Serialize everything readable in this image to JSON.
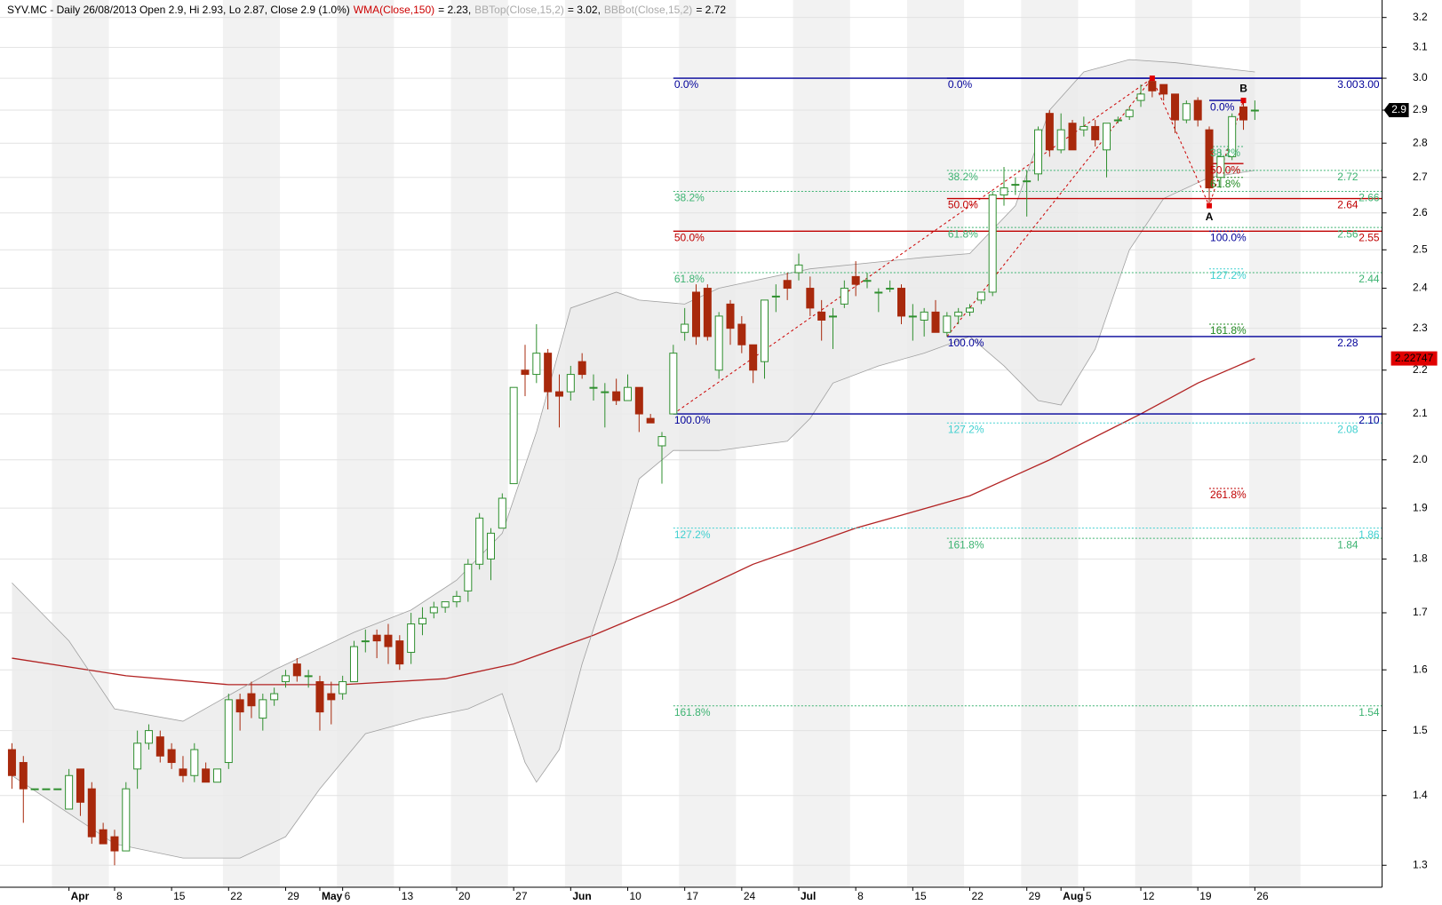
{
  "chart_data": {
    "type": "candlestick",
    "title": "SYV.MC - Daily 26/08/2013 Open 2.9, Hi 2.93, Lo 2.87, Close 2.9 (1.0%)",
    "log_scale": true,
    "grid": true,
    "up_color": "#2f8f2f",
    "down_color": "#a8290c",
    "band_fill": "#ebebeb",
    "ylim": [
      1.27,
      3.26
    ],
    "yticks": [
      1.3,
      1.4,
      1.5,
      1.6,
      1.7,
      1.8,
      1.9,
      {
        "value": 2,
        "label": "2.0"
      },
      2.1,
      2.2,
      2.3,
      2.4,
      2.5,
      2.6,
      2.7,
      2.8,
      2.9,
      {
        "value": 3,
        "label": "3.0"
      },
      3.1,
      3.2
    ],
    "categories": [
      null,
      null,
      null,
      null,
      null,
      "Apr",
      null,
      null,
      null,
      "8",
      null,
      null,
      null,
      null,
      "15",
      null,
      null,
      null,
      null,
      "22",
      null,
      null,
      null,
      null,
      "29",
      null,
      null,
      "May",
      null,
      "6",
      null,
      null,
      null,
      null,
      "13",
      null,
      null,
      null,
      null,
      "20",
      null,
      null,
      null,
      null,
      "27",
      null,
      null,
      null,
      null,
      "Jun",
      null,
      null,
      null,
      null,
      "10",
      null,
      null,
      null,
      null,
      "17",
      null,
      null,
      null,
      null,
      "24",
      null,
      null,
      null,
      null,
      "Jul",
      null,
      null,
      null,
      null,
      "8",
      null,
      null,
      null,
      null,
      "15",
      null,
      null,
      null,
      null,
      "22",
      null,
      null,
      null,
      null,
      "29",
      null,
      null,
      "Aug",
      null,
      "5",
      null,
      null,
      null,
      null,
      "12",
      null,
      null,
      null,
      null,
      "19",
      null,
      null,
      null,
      null,
      "26"
    ],
    "open": [
      1.47,
      1.45,
      1.41,
      1.41,
      1.41,
      1.38,
      1.44,
      1.41,
      1.35,
      1.34,
      1.32,
      1.44,
      1.48,
      1.49,
      1.47,
      1.44,
      1.43,
      1.44,
      1.42,
      1.45,
      1.55,
      1.56,
      1.52,
      1.55,
      1.58,
      1.61,
      1.59,
      1.58,
      1.56,
      1.56,
      1.58,
      1.65,
      1.66,
      1.66,
      1.65,
      1.63,
      1.68,
      1.7,
      1.71,
      1.72,
      1.74,
      1.79,
      1.8,
      1.86,
      1.95,
      2.2,
      2.19,
      2.24,
      2.15,
      2.15,
      2.22,
      2.16,
      2.15,
      2.15,
      2.13,
      2.16,
      2.09,
      2.03,
      2.1,
      2.29,
      2.39,
      2.4,
      2.2,
      2.36,
      2.31,
      2.26,
      2.22,
      2.38,
      2.42,
      2.44,
      2.4,
      2.34,
      2.33,
      2.36,
      2.43,
      2.42,
      2.39,
      2.4,
      2.4,
      2.33,
      2.32,
      2.34,
      2.29,
      2.33,
      2.34,
      2.37,
      2.39,
      2.65,
      2.68,
      2.69,
      2.71,
      2.89,
      2.78,
      2.86,
      2.84,
      2.85,
      2.78,
      2.87,
      2.88,
      2.93,
      2.99,
      2.98,
      2.95,
      2.87,
      2.93,
      2.84,
      2.7,
      2.76,
      2.91,
      2.9
    ],
    "high": [
      1.48,
      1.46,
      1.41,
      1.41,
      1.41,
      1.44,
      1.44,
      1.42,
      1.36,
      1.35,
      1.42,
      1.5,
      1.51,
      1.5,
      1.48,
      1.46,
      1.48,
      1.45,
      1.44,
      1.56,
      1.56,
      1.58,
      1.56,
      1.57,
      1.6,
      1.62,
      1.6,
      1.59,
      1.58,
      1.59,
      1.65,
      1.67,
      1.67,
      1.68,
      1.66,
      1.7,
      1.71,
      1.72,
      1.72,
      1.74,
      1.8,
      1.89,
      1.86,
      1.93,
      2.16,
      2.26,
      2.31,
      2.25,
      2.19,
      2.21,
      2.24,
      2.19,
      2.17,
      2.18,
      2.19,
      2.16,
      2.1,
      2.06,
      2.26,
      2.35,
      2.41,
      2.41,
      2.34,
      2.37,
      2.33,
      2.26,
      2.37,
      2.41,
      2.44,
      2.49,
      2.43,
      2.37,
      2.35,
      2.42,
      2.47,
      2.44,
      2.4,
      2.42,
      2.41,
      2.36,
      2.35,
      2.37,
      2.34,
      2.35,
      2.36,
      2.39,
      2.66,
      2.73,
      2.7,
      2.72,
      2.85,
      2.9,
      2.89,
      2.87,
      2.88,
      2.87,
      2.86,
      2.88,
      2.91,
      2.98,
      3.0,
      2.98,
      2.95,
      2.93,
      2.94,
      2.85,
      2.78,
      2.89,
      2.93,
      2.93
    ],
    "low": [
      1.41,
      1.36,
      1.41,
      1.41,
      1.41,
      1.38,
      1.37,
      1.33,
      1.33,
      1.3,
      1.32,
      1.41,
      1.47,
      1.45,
      1.44,
      1.42,
      1.42,
      1.42,
      1.42,
      1.44,
      1.5,
      1.52,
      1.5,
      1.54,
      1.57,
      1.58,
      1.57,
      1.5,
      1.51,
      1.55,
      1.58,
      1.63,
      1.62,
      1.61,
      1.6,
      1.61,
      1.66,
      1.69,
      1.7,
      1.71,
      1.72,
      1.78,
      1.76,
      1.86,
      1.95,
      2.14,
      2.17,
      2.11,
      2.07,
      2.13,
      2.18,
      2.13,
      2.07,
      2.12,
      2.13,
      2.06,
      2.08,
      1.95,
      2.1,
      2.27,
      2.26,
      2.27,
      2.18,
      2.26,
      2.24,
      2.17,
      2.18,
      2.34,
      2.37,
      2.42,
      2.33,
      2.27,
      2.25,
      2.35,
      2.38,
      2.4,
      2.34,
      2.39,
      2.31,
      2.27,
      2.28,
      2.29,
      2.28,
      2.31,
      2.33,
      2.36,
      2.38,
      2.62,
      2.65,
      2.59,
      2.69,
      2.76,
      2.77,
      2.78,
      2.82,
      2.79,
      2.7,
      2.86,
      2.87,
      2.91,
      2.94,
      2.93,
      2.83,
      2.86,
      2.85,
      2.62,
      2.67,
      2.75,
      2.84,
      2.87
    ],
    "close": [
      1.43,
      1.41,
      1.41,
      1.41,
      1.41,
      1.43,
      1.39,
      1.34,
      1.33,
      1.32,
      1.41,
      1.48,
      1.5,
      1.46,
      1.45,
      1.43,
      1.47,
      1.42,
      1.44,
      1.55,
      1.53,
      1.54,
      1.55,
      1.56,
      1.59,
      1.59,
      1.59,
      1.53,
      1.55,
      1.58,
      1.64,
      1.65,
      1.65,
      1.64,
      1.61,
      1.68,
      1.69,
      1.71,
      1.72,
      1.73,
      1.79,
      1.88,
      1.85,
      1.92,
      2.16,
      2.19,
      2.24,
      2.15,
      2.14,
      2.19,
      2.19,
      2.16,
      2.15,
      2.13,
      2.16,
      2.1,
      2.08,
      2.05,
      2.24,
      2.31,
      2.28,
      2.28,
      2.33,
      2.3,
      2.26,
      2.2,
      2.37,
      2.38,
      2.4,
      2.46,
      2.35,
      2.32,
      2.33,
      2.4,
      2.41,
      2.42,
      2.39,
      2.4,
      2.33,
      2.33,
      2.34,
      2.29,
      2.33,
      2.34,
      2.35,
      2.39,
      2.65,
      2.67,
      2.68,
      2.69,
      2.84,
      2.78,
      2.84,
      2.78,
      2.85,
      2.81,
      2.86,
      2.87,
      2.9,
      2.95,
      2.96,
      2.95,
      2.87,
      2.92,
      2.87,
      2.67,
      2.76,
      2.88,
      2.87,
      2.9
    ],
    "overlays": [
      {
        "name": "WMA(Close,150)",
        "readout": "= 2.23,",
        "color": "#b22222",
        "text_color": "#cc0000",
        "x": [
          0,
          10,
          19,
          29,
          38,
          44,
          51,
          58,
          65,
          74,
          84,
          91,
          99,
          104,
          109
        ],
        "values": [
          1.62,
          1.59,
          1.575,
          1.575,
          1.585,
          1.61,
          1.66,
          1.72,
          1.79,
          1.86,
          1.925,
          2.0,
          2.1,
          2.17,
          2.22747
        ]
      },
      {
        "name": "BBTop(Close,15,2)",
        "readout": "= 3.02,",
        "color": "#a0a0a0",
        "text_color": "#aaaaaa",
        "x": [
          0,
          5,
          9,
          15,
          23,
          30,
          35,
          39,
          43,
          46,
          49,
          53,
          55,
          59,
          62,
          70,
          80,
          84,
          88,
          91,
          94,
          98,
          102,
          109
        ],
        "values": [
          1.755,
          1.65,
          1.535,
          1.515,
          1.6,
          1.665,
          1.705,
          1.76,
          1.85,
          2.06,
          2.35,
          2.39,
          2.37,
          2.36,
          2.4,
          2.45,
          2.48,
          2.49,
          2.62,
          2.9,
          3.02,
          3.06,
          3.05,
          3.02
        ]
      },
      {
        "name": "BBBot(Close,15,2)",
        "readout": "= 2.72",
        "color": "#a0a0a0",
        "text_color": "#aaaaaa",
        "x": [
          0,
          9,
          15,
          20,
          24,
          27,
          31,
          36,
          40,
          43,
          45,
          46,
          48,
          50,
          53,
          55,
          58,
          62,
          68,
          70,
          72,
          76,
          80,
          84,
          87,
          90,
          92,
          95,
          98,
          101,
          105,
          109
        ],
        "values": [
          1.43,
          1.33,
          1.31,
          1.31,
          1.34,
          1.41,
          1.495,
          1.52,
          1.535,
          1.56,
          1.45,
          1.42,
          1.47,
          1.61,
          1.8,
          1.96,
          2.02,
          2.02,
          2.04,
          2.09,
          2.17,
          2.21,
          2.24,
          2.28,
          2.21,
          2.13,
          2.12,
          2.25,
          2.5,
          2.64,
          2.7,
          2.72
        ]
      }
    ],
    "fibs": [
      {
        "x_start": 58,
        "levels": [
          {
            "label": "0.0%",
            "value": 3.0,
            "value_label": "3.00",
            "color": "#000099",
            "style": "solid"
          },
          {
            "label": "38.2%",
            "value": 2.66,
            "value_label": "2.66",
            "color": "#3cb371",
            "style": "dotted"
          },
          {
            "label": "50.0%",
            "value": 2.55,
            "value_label": "2.55",
            "color": "#c00000",
            "style": "solid"
          },
          {
            "label": "61.8%",
            "value": 2.44,
            "value_label": "2.44",
            "color": "#3cb371",
            "style": "dotted"
          },
          {
            "label": "100.0%",
            "value": 2.1,
            "value_label": "2.10",
            "color": "#000099",
            "style": "solid"
          },
          {
            "label": "127.2%",
            "value": 1.86,
            "value_label": "1.86",
            "color": "#40d0d0",
            "style": "dotted"
          },
          {
            "label": "161.8%",
            "value": 1.54,
            "value_label": "1.54",
            "color": "#3cb371",
            "style": "dotted"
          }
        ]
      },
      {
        "x_start": 82,
        "levels": [
          {
            "label": "0.0%",
            "value": 3.0,
            "value_label": "3.00",
            "color": "#000099",
            "style": "solid"
          },
          {
            "label": "38.2%",
            "value": 2.72,
            "value_label": "2.72",
            "color": "#3cb371",
            "style": "dotted"
          },
          {
            "label": "50.0%",
            "value": 2.64,
            "value_label": "2.64",
            "color": "#c00000",
            "style": "solid"
          },
          {
            "label": "61.8%",
            "value": 2.56,
            "value_label": "2.56",
            "color": "#3cb371",
            "style": "dotted"
          },
          {
            "label": "100.0%",
            "value": 2.28,
            "value_label": "2.28",
            "color": "#000099",
            "style": "solid"
          },
          {
            "label": "127.2%",
            "value": 2.08,
            "value_label": "2.08",
            "color": "#40d0d0",
            "style": "dotted"
          },
          {
            "label": "161.8%",
            "value": 1.84,
            "value_label": "1.84",
            "color": "#3cb371",
            "style": "dotted"
          }
        ]
      },
      {
        "x_start": 105,
        "x_end": 108,
        "levels": [
          {
            "label": "0.0%",
            "value": 2.93,
            "color": "#000099",
            "style": "solid"
          },
          {
            "label": "38.2%",
            "value": 2.79,
            "color": "#3cb371",
            "style": "dotted"
          },
          {
            "label": "50.0%",
            "value": 2.74,
            "color": "#c00000",
            "style": "solid"
          },
          {
            "label": "61.8%",
            "value": 2.7,
            "color": "#228b22",
            "style": "dotted"
          },
          {
            "label": "100.0%",
            "value": 2.55,
            "color": "#000099",
            "style": "dotted"
          },
          {
            "label": "127.2%",
            "value": 2.45,
            "color": "#40d0d0",
            "style": "dotted"
          },
          {
            "label": "161.8%",
            "value": 2.31,
            "color": "#228b22",
            "style": "dotted"
          },
          {
            "label": "261.8%",
            "value": 1.94,
            "color": "#c00000",
            "style": "dotted"
          }
        ]
      }
    ],
    "zigzags": [
      {
        "x": [
          58,
          100
        ],
        "values": [
          2.1,
          3.0
        ]
      },
      {
        "x": [
          82,
          100
        ],
        "values": [
          2.28,
          3.0
        ]
      },
      {
        "x": [
          100,
          105,
          108
        ],
        "values": [
          3.0,
          2.62,
          2.93
        ],
        "markers": true
      }
    ],
    "annotations": [
      {
        "text": "A",
        "x": 105,
        "value": 2.62,
        "position": "below"
      },
      {
        "text": "B",
        "x": 108,
        "value": 2.93,
        "position": "above"
      }
    ]
  }
}
